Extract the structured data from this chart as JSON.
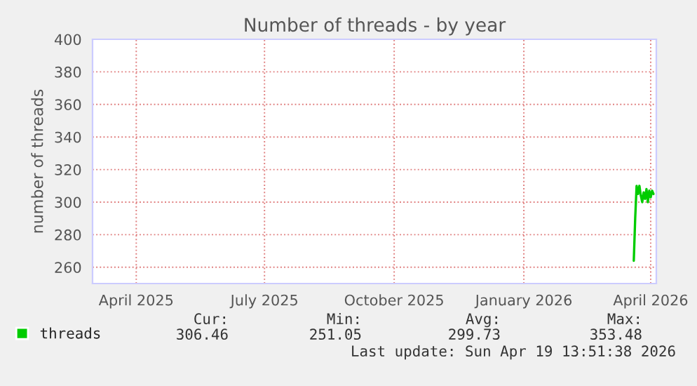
{
  "chart_data": {
    "type": "line",
    "title": "Number of threads - by year",
    "ylabel": "number of threads",
    "x": [
      "2026-04-03",
      "2026-04-04",
      "2026-04-05",
      "2026-04-06",
      "2026-04-07",
      "2026-04-08",
      "2026-04-09",
      "2026-04-10",
      "2026-04-11",
      "2026-04-12",
      "2026-04-13",
      "2026-04-14",
      "2026-04-15",
      "2026-04-16",
      "2026-04-17"
    ],
    "series": [
      {
        "name": "threads",
        "color": "#00cc00",
        "values": [
          264,
          290,
          310,
          305,
          310,
          304,
          300,
          306,
          302,
          308,
          300,
          307,
          303,
          307,
          305
        ]
      }
    ],
    "xlim": [
      "2025-03-15",
      "2026-04-19"
    ],
    "xticks": [
      {
        "value": "2025-04-15",
        "label": "April 2025"
      },
      {
        "value": "2025-07-15",
        "label": "July 2025"
      },
      {
        "value": "2025-10-15",
        "label": "October 2025"
      },
      {
        "value": "2026-01-15",
        "label": "January 2026"
      },
      {
        "value": "2026-04-15",
        "label": "April 2026"
      }
    ],
    "ylim": [
      250,
      400
    ],
    "yticks": [
      260,
      280,
      300,
      320,
      340,
      360,
      380,
      400
    ],
    "grid": true,
    "legend": "bottom",
    "marker": "none",
    "line_style": "solid",
    "annotations": [
      "Cur:",
      "Min:",
      "Avg:",
      "Max:",
      "306.46",
      "251.05",
      "299.73",
      "353.48",
      "Last update: Sun Apr 19 13:51:38 2026"
    ]
  }
}
